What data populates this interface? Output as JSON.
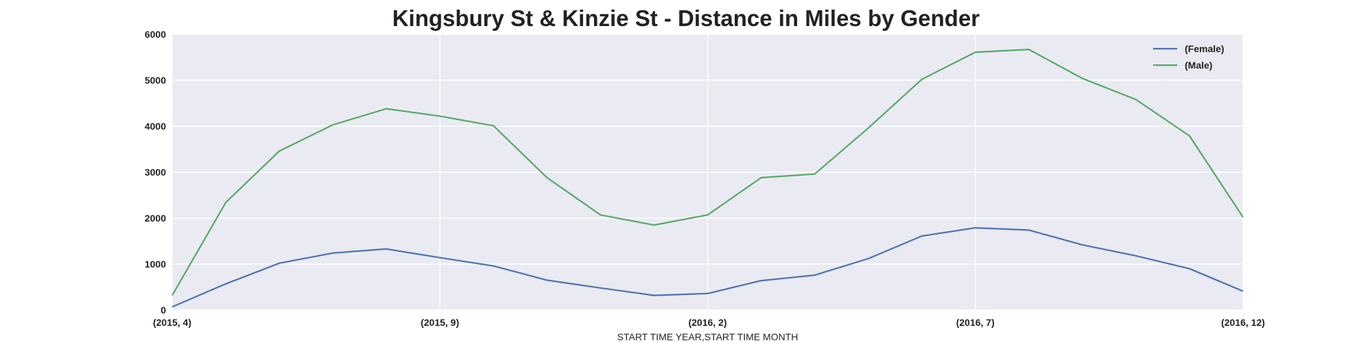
{
  "chart_data": {
    "type": "line",
    "title": "Kingsbury St & Kinzie St - Distance in Miles by Gender",
    "xlabel": "START TIME YEAR,START TIME MONTH",
    "ylabel": "",
    "ylim": [
      0,
      6000
    ],
    "yticks": [
      "0",
      "1000",
      "2000",
      "3000",
      "4000",
      "5000",
      "6000"
    ],
    "categories": [
      "(2015, 4)",
      "(2015, 5)",
      "(2015, 6)",
      "(2015, 7)",
      "(2015, 8)",
      "(2015, 9)",
      "(2015, 10)",
      "(2015, 11)",
      "(2015, 12)",
      "(2016, 1)",
      "(2016, 2)",
      "(2016, 3)",
      "(2016, 4)",
      "(2016, 5)",
      "(2016, 6)",
      "(2016, 7)",
      "(2016, 8)",
      "(2016, 9)",
      "(2016, 10)",
      "(2016, 11)",
      "(2016, 12)"
    ],
    "xtick_labels": [
      "(2015, 4)",
      "(2015, 9)",
      "(2016, 2)",
      "(2016, 7)",
      "(2016, 12)"
    ],
    "grid": true,
    "legend_position": "top-right",
    "series": [
      {
        "name": "(Female)",
        "color": "#4c72b0",
        "values": [
          70,
          570,
          1020,
          1240,
          1330,
          1140,
          960,
          650,
          480,
          320,
          360,
          640,
          760,
          1120,
          1610,
          1790,
          1740,
          1420,
          1180,
          900,
          410
        ]
      },
      {
        "name": "(Male)",
        "color": "#55a868",
        "values": [
          320,
          2340,
          3460,
          4030,
          4380,
          4220,
          4010,
          2880,
          2070,
          1850,
          2070,
          2880,
          2960,
          3960,
          5020,
          5610,
          5670,
          5040,
          4580,
          3790,
          2020
        ]
      }
    ]
  },
  "style": {
    "plot_background": "#eaeaf2",
    "grid_color": "#ffffff",
    "text_color": "#222222"
  }
}
